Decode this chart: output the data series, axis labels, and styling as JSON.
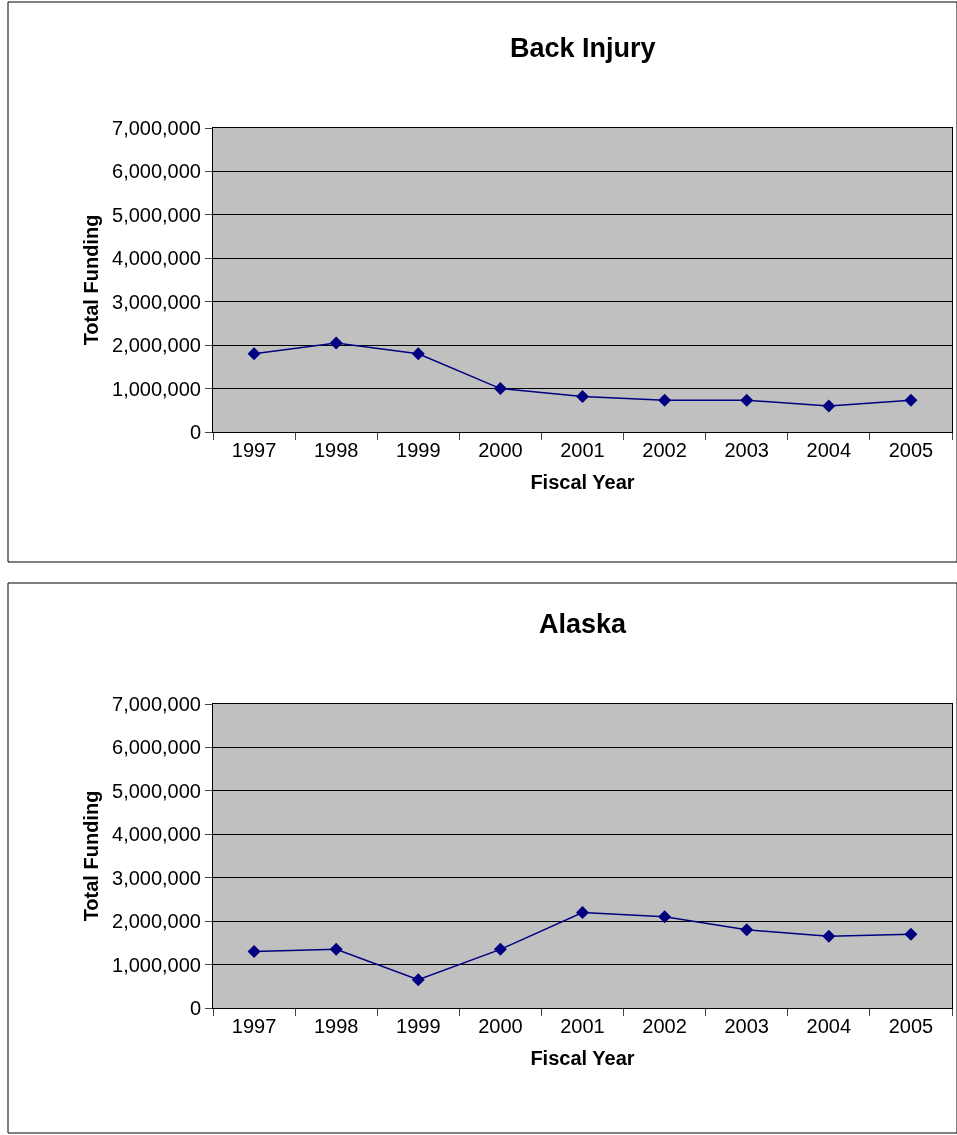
{
  "chart_data": [
    {
      "type": "line",
      "title": "Back Injury",
      "xlabel": "Fiscal Year",
      "ylabel": "Total Funding",
      "categories": [
        "1997",
        "1998",
        "1999",
        "2000",
        "2001",
        "2002",
        "2003",
        "2004",
        "2005"
      ],
      "series": [
        {
          "color": "#000080",
          "values": [
            1800000,
            2050000,
            1800000,
            1000000,
            820000,
            730000,
            730000,
            600000,
            730000
          ]
        }
      ],
      "ylim": [
        0,
        7000000
      ],
      "yticks": [
        {
          "value": 0,
          "label": "0"
        },
        {
          "value": 1000000,
          "label": "1,000,000"
        },
        {
          "value": 2000000,
          "label": "2,000,000"
        },
        {
          "value": 3000000,
          "label": "3,000,000"
        },
        {
          "value": 4000000,
          "label": "4,000,000"
        },
        {
          "value": 5000000,
          "label": "5,000,000"
        },
        {
          "value": 6000000,
          "label": "6,000,000"
        },
        {
          "value": 7000000,
          "label": "7,000,000"
        }
      ],
      "grid": "y",
      "marker": "diamond",
      "line_style": "solid"
    },
    {
      "type": "line",
      "title": "Alaska",
      "xlabel": "Fiscal Year",
      "ylabel": "Total Funding",
      "categories": [
        "1997",
        "1998",
        "1999",
        "2000",
        "2001",
        "2002",
        "2003",
        "2004",
        "2005"
      ],
      "series": [
        {
          "color": "#000080",
          "values": [
            1300000,
            1350000,
            650000,
            1350000,
            2200000,
            2100000,
            1800000,
            1650000,
            1700000
          ]
        }
      ],
      "ylim": [
        0,
        7000000
      ],
      "yticks": [
        {
          "value": 0,
          "label": "0"
        },
        {
          "value": 1000000,
          "label": "1,000,000"
        },
        {
          "value": 2000000,
          "label": "2,000,000"
        },
        {
          "value": 3000000,
          "label": "3,000,000"
        },
        {
          "value": 4000000,
          "label": "4,000,000"
        },
        {
          "value": 5000000,
          "label": "5,000,000"
        },
        {
          "value": 6000000,
          "label": "6,000,000"
        },
        {
          "value": 7000000,
          "label": "7,000,000"
        }
      ],
      "grid": "y",
      "marker": "diamond",
      "line_style": "solid"
    }
  ]
}
